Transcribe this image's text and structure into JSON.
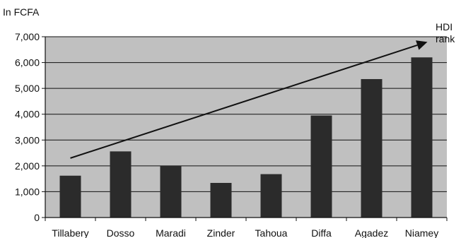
{
  "chart_data": {
    "type": "bar",
    "ylabel": "In FCFA",
    "categories": [
      "Tillabery",
      "Dosso",
      "Maradi",
      "Zinder",
      "Tahoua",
      "Diffa",
      "Agadez",
      "Niamey"
    ],
    "values": [
      1620,
      2560,
      2000,
      1340,
      1680,
      3950,
      5360,
      6200
    ],
    "ylim": [
      0,
      7000
    ],
    "yticks": [
      0,
      1000,
      2000,
      3000,
      4000,
      5000,
      6000,
      7000
    ],
    "ytick_labels": [
      "0",
      "1,000",
      "2,000",
      "3,000",
      "4,000",
      "5,000",
      "6,000",
      "7,000"
    ],
    "grid": true,
    "plot_background": "#c0c0c0",
    "bar_color": "#2b2b2b",
    "annotation": {
      "label_lines": [
        "HDI",
        "rank"
      ],
      "arrow_start": {
        "category": "Tillabery",
        "value": 2300
      },
      "arrow_end": {
        "category": "Niamey",
        "value": 6800
      }
    }
  }
}
